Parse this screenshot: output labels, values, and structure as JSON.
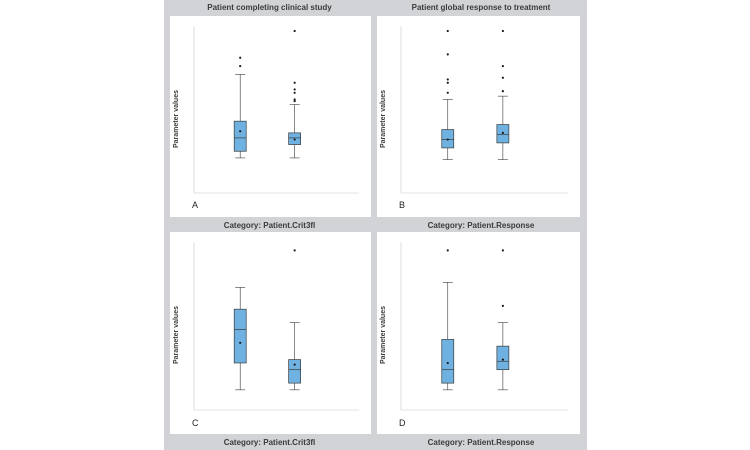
{
  "style": {
    "background": "#d1d3d6",
    "panel_bg": "#ffffff",
    "box_fill": "#6fb2e1",
    "box_stroke": "#3a3a3a",
    "text_color": "#3b3b3b"
  },
  "chart_data": [
    {
      "type": "box",
      "panel_label": "A",
      "title": "Patient completing clinical study",
      "ylabel": "Parameter values",
      "category_label": "Category: Patient.Crit3fl",
      "ylim": [
        0,
        10
      ],
      "groups": [
        {
          "min": 2.1,
          "q1": 2.5,
          "median": 3.3,
          "q3": 4.3,
          "max": 7.1,
          "mean": 3.7,
          "outliers": [
            7.6,
            8.1
          ]
        },
        {
          "min": 2.1,
          "q1": 2.9,
          "median": 3.3,
          "q3": 3.6,
          "max": 5.3,
          "mean": 3.2,
          "outliers": [
            5.5,
            5.6,
            6.0,
            6.2,
            6.6,
            9.7
          ]
        }
      ]
    },
    {
      "type": "box",
      "panel_label": "B",
      "title": "Patient global response to treatment",
      "ylabel": "Parameter values",
      "category_label": "Category: Patient.Response",
      "ylim": [
        0,
        10
      ],
      "groups": [
        {
          "min": 2.0,
          "q1": 2.7,
          "median": 3.2,
          "q3": 3.8,
          "max": 5.6,
          "mean": 3.2,
          "outliers": [
            6.0,
            6.6,
            6.8,
            8.3,
            9.7
          ]
        },
        {
          "min": 2.0,
          "q1": 3.0,
          "median": 3.5,
          "q3": 4.1,
          "max": 5.8,
          "mean": 3.6,
          "outliers": [
            6.1,
            6.9,
            7.6,
            9.7
          ]
        }
      ]
    },
    {
      "type": "box",
      "panel_label": "C",
      "title": "",
      "ylabel": "Parameter values",
      "category_label": "Category: Patient.Crit3fl",
      "ylim": [
        0,
        10
      ],
      "groups": [
        {
          "min": 1.2,
          "q1": 2.8,
          "median": 4.8,
          "q3": 6.0,
          "max": 7.3,
          "mean": 4.0,
          "outliers": []
        },
        {
          "min": 1.2,
          "q1": 1.6,
          "median": 2.4,
          "q3": 3.0,
          "max": 5.2,
          "mean": 2.7,
          "outliers": [
            9.5
          ]
        }
      ]
    },
    {
      "type": "box",
      "panel_label": "D",
      "title": "",
      "ylabel": "Parameter values",
      "category_label": "Category: Patient.Response",
      "ylim": [
        0,
        10
      ],
      "groups": [
        {
          "min": 1.2,
          "q1": 1.6,
          "median": 2.4,
          "q3": 4.2,
          "max": 7.6,
          "mean": 2.8,
          "outliers": [
            9.5
          ]
        },
        {
          "min": 1.2,
          "q1": 2.4,
          "median": 2.9,
          "q3": 3.8,
          "max": 5.2,
          "mean": 3.0,
          "outliers": [
            6.2,
            9.5
          ]
        }
      ]
    }
  ]
}
